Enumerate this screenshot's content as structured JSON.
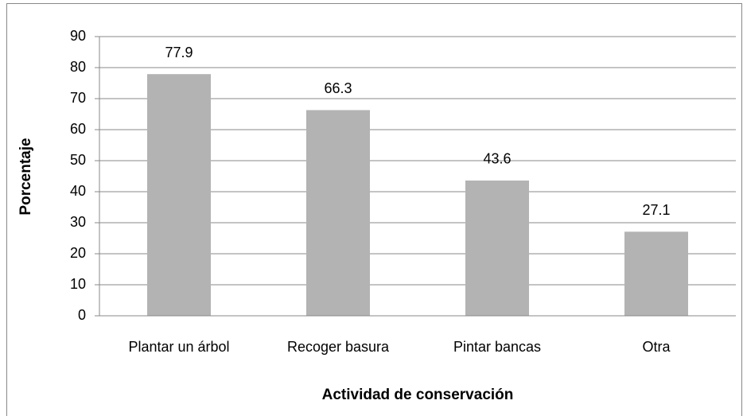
{
  "chart_data": {
    "type": "bar",
    "xlabel": "Actividad de conservación",
    "ylabel": "Porcentaje",
    "categories": [
      "Plantar un árbol",
      "Recoger basura",
      "Pintar bancas",
      "Otra"
    ],
    "values": [
      77.9,
      66.3,
      43.6,
      27.1
    ],
    "color": "#b3b3b3",
    "ylim": [
      0,
      90
    ],
    "yticks": [
      0,
      10,
      20,
      30,
      40,
      50,
      60,
      70,
      80,
      90
    ],
    "grid": true
  }
}
